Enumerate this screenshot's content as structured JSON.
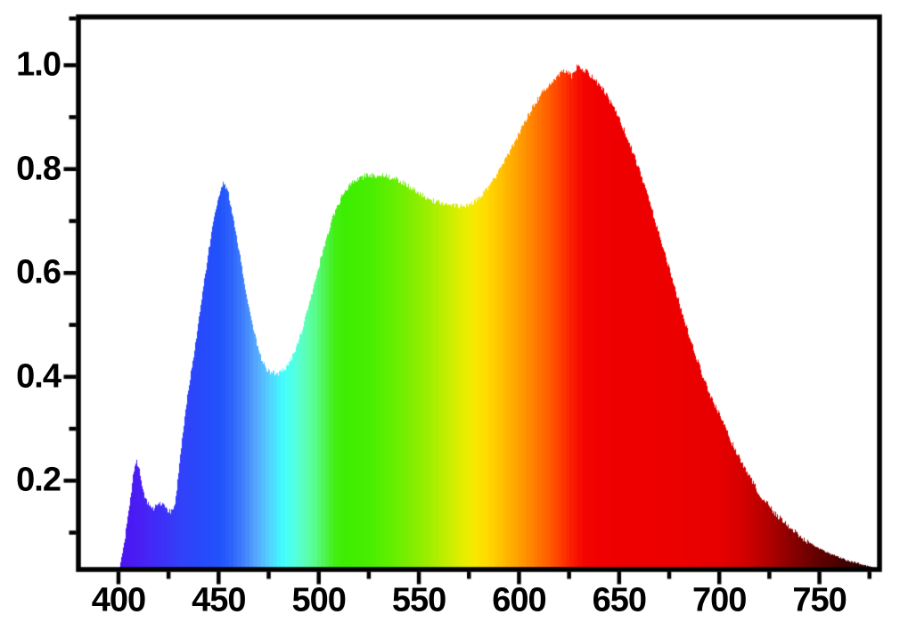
{
  "chart_data": {
    "type": "area",
    "title": "",
    "xlabel": "",
    "ylabel": "",
    "xlim": [
      380,
      780
    ],
    "ylim": [
      0.029,
      1.093
    ],
    "grid": false,
    "legend": "none",
    "x_ticks": [
      400,
      450,
      500,
      550,
      600,
      650,
      700,
      750
    ],
    "x_tick_labels": [
      "400",
      "450",
      "500",
      "550",
      "600",
      "650",
      "700",
      "750"
    ],
    "x_minor_ticks": [
      425,
      475,
      525,
      575,
      625,
      675,
      725,
      775
    ],
    "y_ticks": [
      0.2,
      0.4,
      0.6,
      0.8,
      1.0
    ],
    "y_tick_labels": [
      "0.2",
      "0.4",
      "0.6",
      "0.8",
      "1.0"
    ],
    "y_minor_ticks": [
      0.1,
      0.3,
      0.5,
      0.7,
      0.9,
      1.09
    ],
    "frame_color": "#000000",
    "background_color": "#ffffff",
    "points": [
      [
        399,
        0.01
      ],
      [
        400,
        0.025
      ],
      [
        401,
        0.045
      ],
      [
        402,
        0.065
      ],
      [
        403,
        0.09
      ],
      [
        404,
        0.115
      ],
      [
        405,
        0.14
      ],
      [
        406,
        0.175
      ],
      [
        407,
        0.205
      ],
      [
        408,
        0.228
      ],
      [
        409,
        0.236
      ],
      [
        410,
        0.228
      ],
      [
        411,
        0.205
      ],
      [
        412,
        0.185
      ],
      [
        413,
        0.168
      ],
      [
        414,
        0.158
      ],
      [
        415,
        0.152
      ],
      [
        416,
        0.149
      ],
      [
        417,
        0.147
      ],
      [
        418,
        0.148
      ],
      [
        419,
        0.151
      ],
      [
        420,
        0.154
      ],
      [
        421,
        0.155
      ],
      [
        422,
        0.152
      ],
      [
        423,
        0.148
      ],
      [
        424,
        0.144
      ],
      [
        425,
        0.142
      ],
      [
        426,
        0.141
      ],
      [
        427,
        0.143
      ],
      [
        428,
        0.155
      ],
      [
        429,
        0.185
      ],
      [
        430,
        0.225
      ],
      [
        431,
        0.26
      ],
      [
        432,
        0.295
      ],
      [
        433,
        0.325
      ],
      [
        434,
        0.355
      ],
      [
        435,
        0.38
      ],
      [
        436,
        0.405
      ],
      [
        437,
        0.432
      ],
      [
        438,
        0.458
      ],
      [
        439,
        0.485
      ],
      [
        440,
        0.512
      ],
      [
        441,
        0.54
      ],
      [
        442,
        0.567
      ],
      [
        443,
        0.594
      ],
      [
        444,
        0.62
      ],
      [
        445,
        0.645
      ],
      [
        446,
        0.668
      ],
      [
        447,
        0.69
      ],
      [
        448,
        0.712
      ],
      [
        449,
        0.731
      ],
      [
        450,
        0.748
      ],
      [
        451,
        0.762
      ],
      [
        452,
        0.771
      ],
      [
        453,
        0.77
      ],
      [
        454,
        0.762
      ],
      [
        455,
        0.748
      ],
      [
        456,
        0.73
      ],
      [
        457,
        0.71
      ],
      [
        458,
        0.688
      ],
      [
        459,
        0.665
      ],
      [
        460,
        0.643
      ],
      [
        461,
        0.62
      ],
      [
        462,
        0.598
      ],
      [
        463,
        0.576
      ],
      [
        464,
        0.555
      ],
      [
        465,
        0.535
      ],
      [
        466,
        0.516
      ],
      [
        467,
        0.498
      ],
      [
        468,
        0.48
      ],
      [
        469,
        0.463
      ],
      [
        470,
        0.448
      ],
      [
        471,
        0.437
      ],
      [
        472,
        0.427
      ],
      [
        473,
        0.42
      ],
      [
        474,
        0.414
      ],
      [
        475,
        0.41
      ],
      [
        476,
        0.408
      ],
      [
        477,
        0.407
      ],
      [
        478,
        0.406
      ],
      [
        479,
        0.406
      ],
      [
        480,
        0.407
      ],
      [
        481,
        0.409
      ],
      [
        482,
        0.412
      ],
      [
        483,
        0.416
      ],
      [
        484,
        0.421
      ],
      [
        485,
        0.427
      ],
      [
        486,
        0.434
      ],
      [
        487,
        0.442
      ],
      [
        488,
        0.451
      ],
      [
        489,
        0.461
      ],
      [
        490,
        0.472
      ],
      [
        491,
        0.484
      ],
      [
        492,
        0.497
      ],
      [
        493,
        0.511
      ],
      [
        494,
        0.525
      ],
      [
        495,
        0.54
      ],
      [
        496,
        0.555
      ],
      [
        497,
        0.57
      ],
      [
        498,
        0.585
      ],
      [
        499,
        0.6
      ],
      [
        500,
        0.615
      ],
      [
        501,
        0.63
      ],
      [
        502,
        0.644
      ],
      [
        503,
        0.658
      ],
      [
        504,
        0.671
      ],
      [
        505,
        0.684
      ],
      [
        506,
        0.696
      ],
      [
        507,
        0.707
      ],
      [
        508,
        0.717
      ],
      [
        509,
        0.727
      ],
      [
        510,
        0.736
      ],
      [
        511,
        0.744
      ],
      [
        512,
        0.752
      ],
      [
        513,
        0.758
      ],
      [
        514,
        0.764
      ],
      [
        515,
        0.769
      ],
      [
        516,
        0.773
      ],
      [
        517,
        0.777
      ],
      [
        518,
        0.78
      ],
      [
        520,
        0.782
      ],
      [
        522,
        0.784
      ],
      [
        524,
        0.789
      ],
      [
        525,
        0.785
      ],
      [
        526,
        0.787
      ],
      [
        528,
        0.788
      ],
      [
        530,
        0.789
      ],
      [
        532,
        0.788
      ],
      [
        534,
        0.786
      ],
      [
        536,
        0.783
      ],
      [
        538,
        0.781
      ],
      [
        540,
        0.778
      ],
      [
        542,
        0.774
      ],
      [
        544,
        0.769
      ],
      [
        546,
        0.764
      ],
      [
        548,
        0.759
      ],
      [
        550,
        0.754
      ],
      [
        552,
        0.749
      ],
      [
        554,
        0.745
      ],
      [
        556,
        0.741
      ],
      [
        558,
        0.738
      ],
      [
        560,
        0.735
      ],
      [
        562,
        0.733
      ],
      [
        564,
        0.731
      ],
      [
        566,
        0.73
      ],
      [
        568,
        0.729
      ],
      [
        570,
        0.728
      ],
      [
        572,
        0.729
      ],
      [
        574,
        0.731
      ],
      [
        576,
        0.734
      ],
      [
        578,
        0.739
      ],
      [
        580,
        0.745
      ],
      [
        582,
        0.753
      ],
      [
        584,
        0.762
      ],
      [
        586,
        0.772
      ],
      [
        588,
        0.784
      ],
      [
        590,
        0.797
      ],
      [
        592,
        0.811
      ],
      [
        594,
        0.825
      ],
      [
        596,
        0.84
      ],
      [
        598,
        0.855
      ],
      [
        600,
        0.87
      ],
      [
        602,
        0.885
      ],
      [
        604,
        0.9
      ],
      [
        606,
        0.914
      ],
      [
        608,
        0.927
      ],
      [
        610,
        0.939
      ],
      [
        612,
        0.95
      ],
      [
        614,
        0.96
      ],
      [
        616,
        0.969
      ],
      [
        618,
        0.976
      ],
      [
        620,
        0.982
      ],
      [
        622,
        0.987
      ],
      [
        623,
        0.989
      ],
      [
        624,
        0.99
      ],
      [
        625,
        0.986
      ],
      [
        626,
        0.979
      ],
      [
        627,
        0.987
      ],
      [
        628,
        0.993
      ],
      [
        629,
        0.997
      ],
      [
        630,
        0.996
      ],
      [
        631,
        0.993
      ],
      [
        632,
        0.99
      ],
      [
        634,
        0.986
      ],
      [
        636,
        0.979
      ],
      [
        638,
        0.971
      ],
      [
        640,
        0.962
      ],
      [
        642,
        0.951
      ],
      [
        644,
        0.939
      ],
      [
        646,
        0.926
      ],
      [
        648,
        0.912
      ],
      [
        650,
        0.896
      ],
      [
        652,
        0.878
      ],
      [
        654,
        0.859
      ],
      [
        656,
        0.839
      ],
      [
        658,
        0.818
      ],
      [
        660,
        0.796
      ],
      [
        662,
        0.772
      ],
      [
        664,
        0.748
      ],
      [
        666,
        0.723
      ],
      [
        668,
        0.698
      ],
      [
        670,
        0.672
      ],
      [
        672,
        0.646
      ],
      [
        674,
        0.619
      ],
      [
        676,
        0.592
      ],
      [
        678,
        0.566
      ],
      [
        680,
        0.54
      ],
      [
        682,
        0.515
      ],
      [
        684,
        0.49
      ],
      [
        686,
        0.466
      ],
      [
        688,
        0.442
      ],
      [
        690,
        0.419
      ],
      [
        692,
        0.397
      ],
      [
        694,
        0.376
      ],
      [
        696,
        0.358
      ],
      [
        698,
        0.342
      ],
      [
        700,
        0.328
      ],
      [
        702,
        0.309
      ],
      [
        704,
        0.291
      ],
      [
        706,
        0.274
      ],
      [
        708,
        0.258
      ],
      [
        710,
        0.243
      ],
      [
        712,
        0.228
      ],
      [
        714,
        0.214
      ],
      [
        716,
        0.2
      ],
      [
        718,
        0.187
      ],
      [
        720,
        0.175
      ],
      [
        722,
        0.164
      ],
      [
        724,
        0.154
      ],
      [
        726,
        0.145
      ],
      [
        728,
        0.136
      ],
      [
        730,
        0.128
      ],
      [
        732,
        0.12
      ],
      [
        734,
        0.113
      ],
      [
        736,
        0.106
      ],
      [
        738,
        0.1
      ],
      [
        740,
        0.094
      ],
      [
        742,
        0.088
      ],
      [
        744,
        0.083
      ],
      [
        746,
        0.078
      ],
      [
        748,
        0.073
      ],
      [
        750,
        0.069
      ],
      [
        752,
        0.065
      ],
      [
        754,
        0.061
      ],
      [
        756,
        0.058
      ],
      [
        758,
        0.055
      ],
      [
        760,
        0.052
      ],
      [
        762,
        0.049
      ],
      [
        764,
        0.046
      ],
      [
        766,
        0.044
      ],
      [
        768,
        0.042
      ],
      [
        770,
        0.04
      ],
      [
        772,
        0.038
      ],
      [
        774,
        0.036
      ],
      [
        776,
        0.033
      ],
      [
        777,
        0.031
      ],
      [
        778,
        0.029
      ]
    ],
    "colormap": [
      [
        398,
        "#4a10f0"
      ],
      [
        410,
        "#4a1ef5"
      ],
      [
        420,
        "#3f2ef7"
      ],
      [
        430,
        "#3340f9"
      ],
      [
        440,
        "#2849fa"
      ],
      [
        450,
        "#2152fb"
      ],
      [
        456,
        "#2e63fb"
      ],
      [
        462,
        "#3f80fc"
      ],
      [
        468,
        "#55a4fd"
      ],
      [
        474,
        "#55cbfe"
      ],
      [
        479,
        "#45ecff"
      ],
      [
        483,
        "#46fffa"
      ],
      [
        488,
        "#52ffe0"
      ],
      [
        493,
        "#5cffb8"
      ],
      [
        498,
        "#58fc8a"
      ],
      [
        503,
        "#4ef54d"
      ],
      [
        508,
        "#42ef12"
      ],
      [
        513,
        "#3cee00"
      ],
      [
        525,
        "#48ee00"
      ],
      [
        535,
        "#5fee00"
      ],
      [
        545,
        "#7cee00"
      ],
      [
        555,
        "#a0ee00"
      ],
      [
        565,
        "#c8ee00"
      ],
      [
        572,
        "#e6ee00"
      ],
      [
        578,
        "#f8e800"
      ],
      [
        584,
        "#ffd900"
      ],
      [
        590,
        "#ffc400"
      ],
      [
        596,
        "#ffae00"
      ],
      [
        602,
        "#ff9500"
      ],
      [
        608,
        "#ff7b00"
      ],
      [
        614,
        "#ff6000"
      ],
      [
        620,
        "#ff4000"
      ],
      [
        626,
        "#fb1d00"
      ],
      [
        632,
        "#f50500"
      ],
      [
        640,
        "#f00000"
      ],
      [
        680,
        "#ec0000"
      ],
      [
        700,
        "#e60000"
      ],
      [
        712,
        "#d40000"
      ],
      [
        722,
        "#b80000"
      ],
      [
        735,
        "#8d0000"
      ],
      [
        748,
        "#650000"
      ],
      [
        760,
        "#480000"
      ],
      [
        770,
        "#380000"
      ],
      [
        778,
        "#2d0000"
      ]
    ]
  }
}
